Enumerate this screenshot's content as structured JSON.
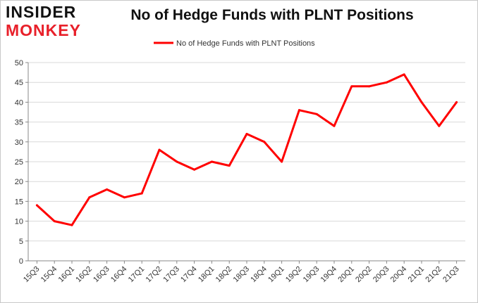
{
  "logo": {
    "line1": "INSIDER",
    "line2": "MONKEY"
  },
  "chart_data": {
    "type": "line",
    "title": "No of Hedge Funds with PLNT Positions",
    "xlabel": "",
    "ylabel": "",
    "categories": [
      "15Q3",
      "15Q4",
      "16Q1",
      "16Q2",
      "16Q3",
      "16Q4",
      "17Q1",
      "17Q2",
      "17Q3",
      "17Q4",
      "18Q1",
      "18Q2",
      "18Q3",
      "18Q4",
      "19Q1",
      "19Q2",
      "19Q3",
      "19Q4",
      "20Q1",
      "20Q2",
      "20Q3",
      "20Q4",
      "21Q1",
      "21Q2",
      "21Q3"
    ],
    "series": [
      {
        "name": "No of Hedge Funds with PLNT Positions",
        "color": "#ff0000",
        "values": [
          14,
          10,
          9,
          16,
          18,
          16,
          17,
          28,
          25,
          23,
          25,
          24,
          32,
          30,
          25,
          38,
          37,
          34,
          44,
          44,
          45,
          47,
          40,
          34,
          40
        ]
      }
    ],
    "ylim": [
      0,
      50
    ],
    "yticks": [
      0,
      5,
      10,
      15,
      20,
      25,
      30,
      35,
      40,
      45,
      50
    ],
    "grid": true,
    "legend_position": "top-center"
  }
}
